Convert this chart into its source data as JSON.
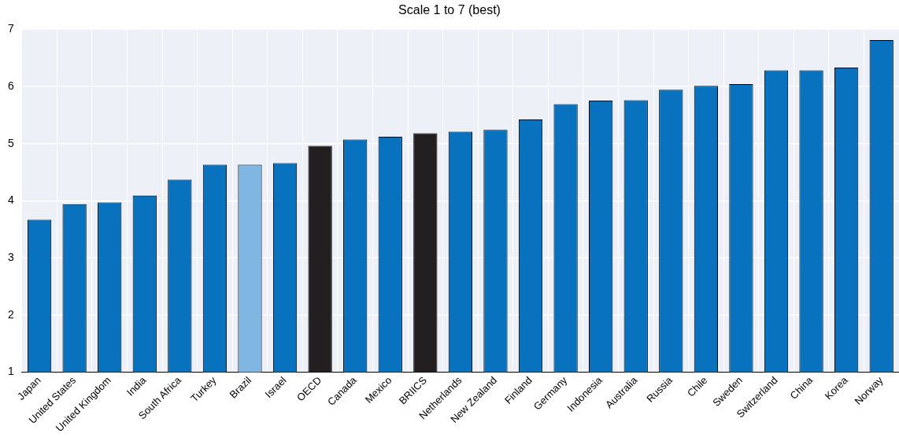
{
  "chart_data": {
    "type": "bar",
    "title": "Scale 1 to 7 (best)",
    "categories": [
      "Japan",
      "United States",
      "United Kingdom",
      "India",
      "South Africa",
      "Turkey",
      "Brazil",
      "Israel",
      "OECD",
      "Canada",
      "Mexico",
      "BRIICS",
      "Netherlands",
      "New Zealand",
      "Finland",
      "Germany",
      "Indonesia",
      "Australia",
      "Russia",
      "Chile",
      "Sweden",
      "Switzerland",
      "China",
      "Korea",
      "Norway"
    ],
    "values": [
      3.67,
      3.94,
      3.97,
      4.09,
      4.37,
      4.63,
      4.63,
      4.66,
      4.96,
      5.07,
      5.12,
      5.18,
      5.21,
      5.24,
      5.42,
      5.69,
      5.75,
      5.76,
      5.94,
      6.01,
      6.04,
      6.28,
      6.28,
      6.33,
      6.81
    ],
    "colors": [
      "#0872be",
      "#0872be",
      "#0872be",
      "#0872be",
      "#0872be",
      "#0872be",
      "#7fb6e2",
      "#0872be",
      "#231f20",
      "#0872be",
      "#0872be",
      "#231f20",
      "#0872be",
      "#0872be",
      "#0872be",
      "#0872be",
      "#0872be",
      "#0872be",
      "#0872be",
      "#0872be",
      "#0872be",
      "#0872be",
      "#0872be",
      "#0872be",
      "#0872be"
    ],
    "ylim": [
      1,
      7
    ],
    "yticks": [
      1,
      2,
      3,
      4,
      5,
      6,
      7
    ],
    "grid": true,
    "legend": false
  }
}
